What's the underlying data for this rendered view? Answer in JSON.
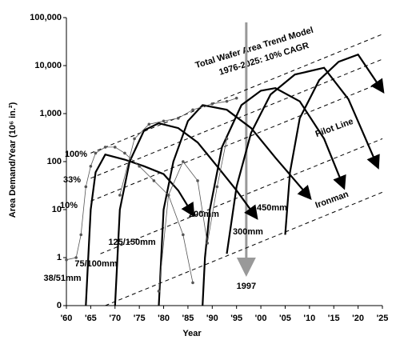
{
  "chart_data": {
    "type": "line",
    "x_label": "Year",
    "y_label": "Area Demand/Year (10⁶ in.²)",
    "y_scale": "log",
    "xlim": [
      1960,
      2025
    ],
    "ylim": [
      0.1,
      100000
    ],
    "xticks": [
      {
        "value": 1960,
        "label": "'60"
      },
      {
        "value": 1965,
        "label": "'65"
      },
      {
        "value": 1970,
        "label": "'70"
      },
      {
        "value": 1975,
        "label": "'75"
      },
      {
        "value": 1980,
        "label": "'80"
      },
      {
        "value": 1985,
        "label": "'85"
      },
      {
        "value": 1990,
        "label": "'90"
      },
      {
        "value": 1995,
        "label": "'95"
      },
      {
        "value": 2000,
        "label": "'00"
      },
      {
        "value": 2005,
        "label": "'05"
      },
      {
        "value": 2010,
        "label": "'10"
      },
      {
        "value": 2015,
        "label": "'15"
      },
      {
        "value": 2020,
        "label": "'20"
      },
      {
        "value": 2025,
        "label": "'25"
      }
    ],
    "yticks": [
      {
        "value": 0.1,
        "label": "0"
      },
      1,
      10,
      100,
      {
        "value": 1000,
        "label": "1,000"
      },
      {
        "value": 10000,
        "label": "10,000"
      },
      {
        "value": 100000,
        "label": "100,000"
      }
    ],
    "annotations": [
      "Total Wafer Area Trend Model",
      "1976-2025: 10% CAGR"
    ],
    "marker_line": {
      "x": 1997,
      "color": "#999999"
    },
    "series": [
      {
        "name": "38/51mm",
        "style": "solid",
        "color": "#000000",
        "x": [
          1964,
          1964.5,
          1965,
          1966,
          1968,
          1972,
          1976,
          1980,
          1983,
          1986
        ],
        "values": [
          0.1,
          1,
          10,
          60,
          140,
          110,
          80,
          55,
          25,
          8
        ]
      },
      {
        "name": "75/100mm",
        "style": "solid",
        "color": "#000000",
        "x": [
          1970,
          1970.5,
          1971,
          1973,
          1976,
          1979,
          1983,
          1987,
          1991,
          1995,
          1999
        ],
        "values": [
          0.1,
          1,
          10,
          100,
          450,
          630,
          500,
          250,
          80,
          25,
          7
        ]
      },
      {
        "name": "125/150mm",
        "style": "solid",
        "color": "#000000",
        "x": [
          1979,
          1979.5,
          1980,
          1982,
          1985,
          1988,
          1993,
          1998,
          2003,
          2010
        ],
        "values": [
          0.1,
          1,
          10,
          100,
          700,
          1500,
          1200,
          500,
          120,
          18
        ]
      },
      {
        "name": "200mm",
        "style": "solid",
        "color": "#000000",
        "x": [
          1988,
          1988.5,
          1989.5,
          1992,
          1996,
          2000,
          2003,
          2008,
          2013,
          2017
        ],
        "values": [
          0.1,
          1,
          10,
          200,
          1500,
          3000,
          3400,
          1800,
          300,
          30
        ]
      },
      {
        "name": "300mm",
        "style": "solid",
        "color": "#000000",
        "x": [
          1993,
          1995,
          1998,
          2002,
          2007,
          2013,
          2018,
          2024
        ],
        "values": [
          1.2,
          30,
          400,
          2500,
          6500,
          9000,
          2000,
          80
        ]
      },
      {
        "name": "450mm",
        "style": "solid",
        "color": "#000000",
        "x": [
          2005,
          2006,
          2008,
          2012,
          2016,
          2020,
          2025
        ],
        "values": [
          3,
          60,
          800,
          5000,
          12000,
          17000,
          3000
        ]
      },
      {
        "name": "100%",
        "style": "dashed",
        "color": "#000000",
        "x": [
          1965,
          2025
        ],
        "values": [
          150,
          45000
        ]
      },
      {
        "name": "33%",
        "style": "dashed",
        "color": "#000000",
        "x": [
          1965,
          2025
        ],
        "values": [
          45,
          13600
        ]
      },
      {
        "name": "10%",
        "style": "dashed",
        "color": "#000000",
        "x": [
          1965,
          2025
        ],
        "values": [
          15,
          4500
        ]
      },
      {
        "name": "Pilot Line",
        "style": "dashed",
        "color": "#000000",
        "x": [
          1967,
          2025
        ],
        "values": [
          1.2,
          300
        ]
      },
      {
        "name": "Ironman",
        "style": "dashed",
        "color": "#000000",
        "x": [
          1968,
          2025
        ],
        "values": [
          0.1,
          23
        ]
      },
      {
        "style": "dotted",
        "color": "#555555",
        "x": [
          1960,
          1962,
          1963,
          1964,
          1965,
          1966,
          1968,
          1970,
          1972,
          1975,
          1978,
          1981,
          1984,
          1986
        ],
        "values": [
          0.9,
          1,
          3,
          30,
          80,
          150,
          200,
          200,
          150,
          80,
          40,
          20,
          3,
          0.3
        ]
      },
      {
        "style": "dotted",
        "color": "#555555",
        "x": [
          1971,
          1974,
          1977,
          1980,
          1983,
          1986,
          1990,
          1993,
          1995
        ],
        "values": [
          20,
          300,
          600,
          700,
          800,
          1200,
          1600,
          1800,
          2100
        ]
      },
      {
        "style": "dotted",
        "color": "#555555",
        "x": [
          1979,
          1981,
          1984,
          1987,
          1989,
          1991,
          1993
        ],
        "values": [
          0.2,
          20,
          100,
          40,
          2,
          30,
          300
        ]
      }
    ]
  }
}
